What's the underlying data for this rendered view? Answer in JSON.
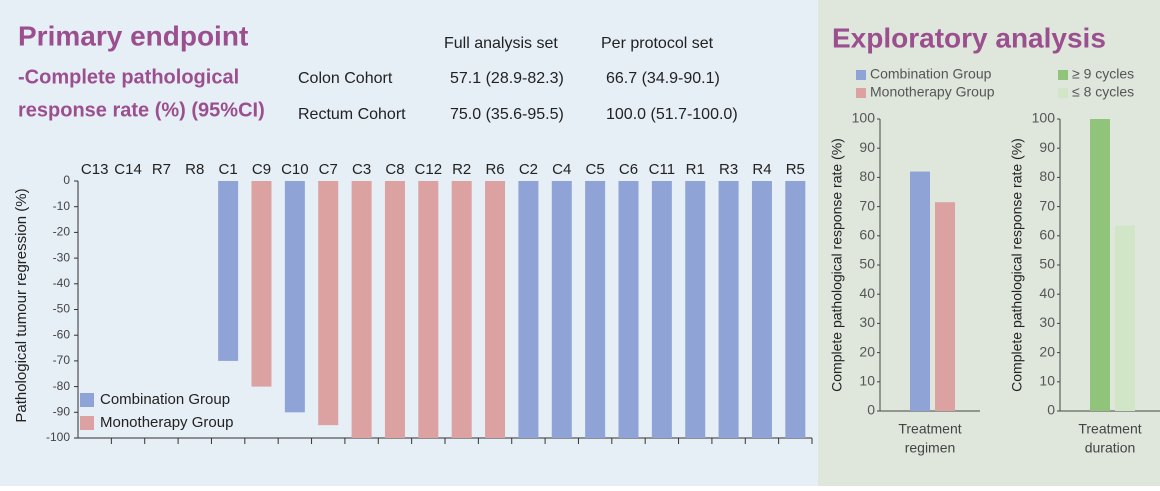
{
  "header": {
    "title": "Primary endpoint",
    "subtitle_lines": [
      "-Complete pathological",
      "response rate (%) (95%CI)"
    ],
    "right_title": "Exploratory analysis"
  },
  "table": {
    "columns": [
      "Full analysis set",
      "Per protocol set"
    ],
    "rows": [
      [
        "Colon Cohort",
        "57.1 (28.9-82.3)",
        "66.7 (34.9-90.1)"
      ],
      [
        "Rectum Cohort",
        "75.0 (35.6-95.5)",
        "100.0 (51.7-100.0)"
      ]
    ]
  },
  "chart_data": [
    {
      "type": "waterfall",
      "ylabel": "Pathological tumour regression (%)",
      "categories": [
        "C13",
        "C14",
        "R7",
        "R8",
        "C1",
        "C9",
        "C10",
        "C7",
        "C3",
        "C8",
        "C12",
        "R2",
        "R6",
        "C2",
        "C4",
        "C5",
        "C6",
        "C11",
        "R1",
        "R3",
        "R4",
        "R5"
      ],
      "series": [
        {
          "name": "Combination Group",
          "color": "#8fa3d6",
          "values": [
            0,
            0,
            0,
            0,
            -70,
            null,
            -90,
            null,
            null,
            null,
            null,
            null,
            null,
            -100,
            -100,
            -100,
            -100,
            -100,
            -100,
            -100,
            -100,
            -100
          ]
        },
        {
          "name": "Monotherapy Group",
          "color": "#dca1a1",
          "values": [
            null,
            null,
            null,
            null,
            null,
            -80,
            null,
            -95,
            -100,
            -100,
            -100,
            -100,
            -100,
            null,
            null,
            null,
            null,
            null,
            null,
            null,
            null,
            null
          ]
        }
      ],
      "ylim": [
        -100,
        0
      ],
      "yticks": [
        0,
        -10,
        -20,
        -30,
        -40,
        -50,
        -60,
        -70,
        -80,
        -90,
        -100
      ],
      "legend": "lower-left"
    },
    {
      "type": "bar",
      "ylabel": "Complete  pathological response rate (%)",
      "xlabel": [
        "Treatment",
        "regimen"
      ],
      "series": [
        {
          "name": "Combination Group",
          "color": "#8fa3d6",
          "values": [
            82
          ]
        },
        {
          "name": "Monotherapy Group",
          "color": "#dca1a1",
          "values": [
            71.5
          ]
        }
      ],
      "ylim": [
        0,
        100
      ],
      "yticks": [
        0,
        10,
        20,
        30,
        40,
        50,
        60,
        70,
        80,
        90,
        100
      ],
      "legend": "top"
    },
    {
      "type": "bar",
      "ylabel": "Complete  pathological response rate (%)",
      "xlabel": [
        "Treatment",
        "duration"
      ],
      "series": [
        {
          "name": "≥ 9 cycles",
          "color": "#8fc47a",
          "values": [
            100
          ]
        },
        {
          "name": "≤ 8 cycles",
          "color": "#d1e5c7",
          "values": [
            63.5
          ]
        }
      ],
      "ylim": [
        0,
        100
      ],
      "yticks": [
        0,
        10,
        20,
        30,
        40,
        50,
        60,
        70,
        80,
        90,
        100
      ],
      "legend": "top"
    }
  ]
}
